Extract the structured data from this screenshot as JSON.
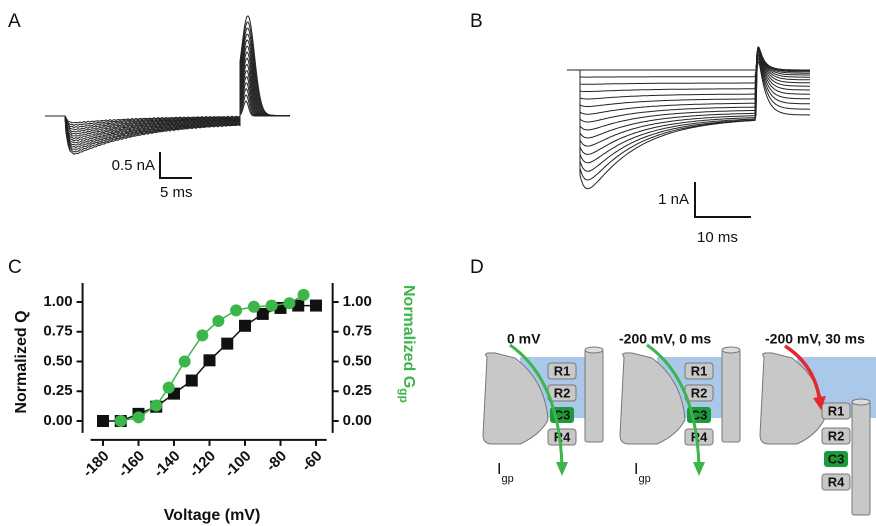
{
  "panels": {
    "a": "A",
    "b": "B",
    "c": "C",
    "d": "D"
  },
  "trace_a": {
    "scale_y": "0.5 nA",
    "scale_x": "5 ms"
  },
  "trace_b": {
    "scale_y": "1 nA",
    "scale_x": "10 ms"
  },
  "chart_data": {
    "type": "scatter",
    "xlabel": "Voltage (mV)",
    "ylabel": "Normalized Q",
    "y2label": "Normalized G",
    "y2label_sub": "gp",
    "xlim": [
      -187,
      -54
    ],
    "xticks": [
      -180,
      -160,
      -140,
      -120,
      -100,
      -80,
      -60
    ],
    "ylim": [
      -0.1,
      1.16
    ],
    "yticks": [
      {
        "value": 0,
        "label": "0.00"
      },
      {
        "value": 0.25,
        "label": "0.25"
      },
      {
        "value": 0.5,
        "label": "0.50"
      },
      {
        "value": 0.75,
        "label": "0.75"
      },
      {
        "value": 1,
        "label": "1.00"
      }
    ],
    "y2lim": [
      -0.1,
      1.16
    ],
    "y2ticks": [
      {
        "value": 0,
        "label": "0.00"
      },
      {
        "value": 0.25,
        "label": "0.25"
      },
      {
        "value": 0.5,
        "label": "0.50"
      },
      {
        "value": 0.75,
        "label": "0.75"
      },
      {
        "value": 1,
        "label": "1.00"
      }
    ],
    "series": [
      {
        "color": "#111111",
        "marker": "square",
        "x": [
          -180,
          -170,
          -160,
          -150,
          -140,
          -130,
          -120,
          -110,
          -100,
          -90,
          -80,
          -70,
          -60
        ],
        "values": [
          0,
          0,
          0.06,
          0.12,
          0.23,
          0.34,
          0.51,
          0.65,
          0.8,
          0.9,
          0.95,
          0.97,
          0.97
        ]
      },
      {
        "color": "#3cb54a",
        "marker": "circle",
        "axis": "y2",
        "x": [
          -170,
          -160,
          -150,
          -143,
          -134,
          -124,
          -115,
          -105,
          -95,
          -85,
          -75,
          -67
        ],
        "values": [
          0,
          0.03,
          0.13,
          0.28,
          0.5,
          0.72,
          0.84,
          0.93,
          0.96,
          0.97,
          0.99,
          1.06
        ]
      }
    ]
  },
  "diagram": {
    "panels": [
      {
        "title": "0 mV",
        "labels": [
          "R1",
          "R2",
          "C3",
          "R4"
        ],
        "current": "I",
        "current_sub": "gp"
      },
      {
        "title": "-200 mV, 0 ms",
        "labels": [
          "R1",
          "R2",
          "C3",
          "R4"
        ],
        "current": "I",
        "current_sub": "gp"
      },
      {
        "title": "-200 mV, 30 ms",
        "labels": [
          "R1",
          "R2",
          "C3",
          "R4"
        ]
      }
    ]
  }
}
